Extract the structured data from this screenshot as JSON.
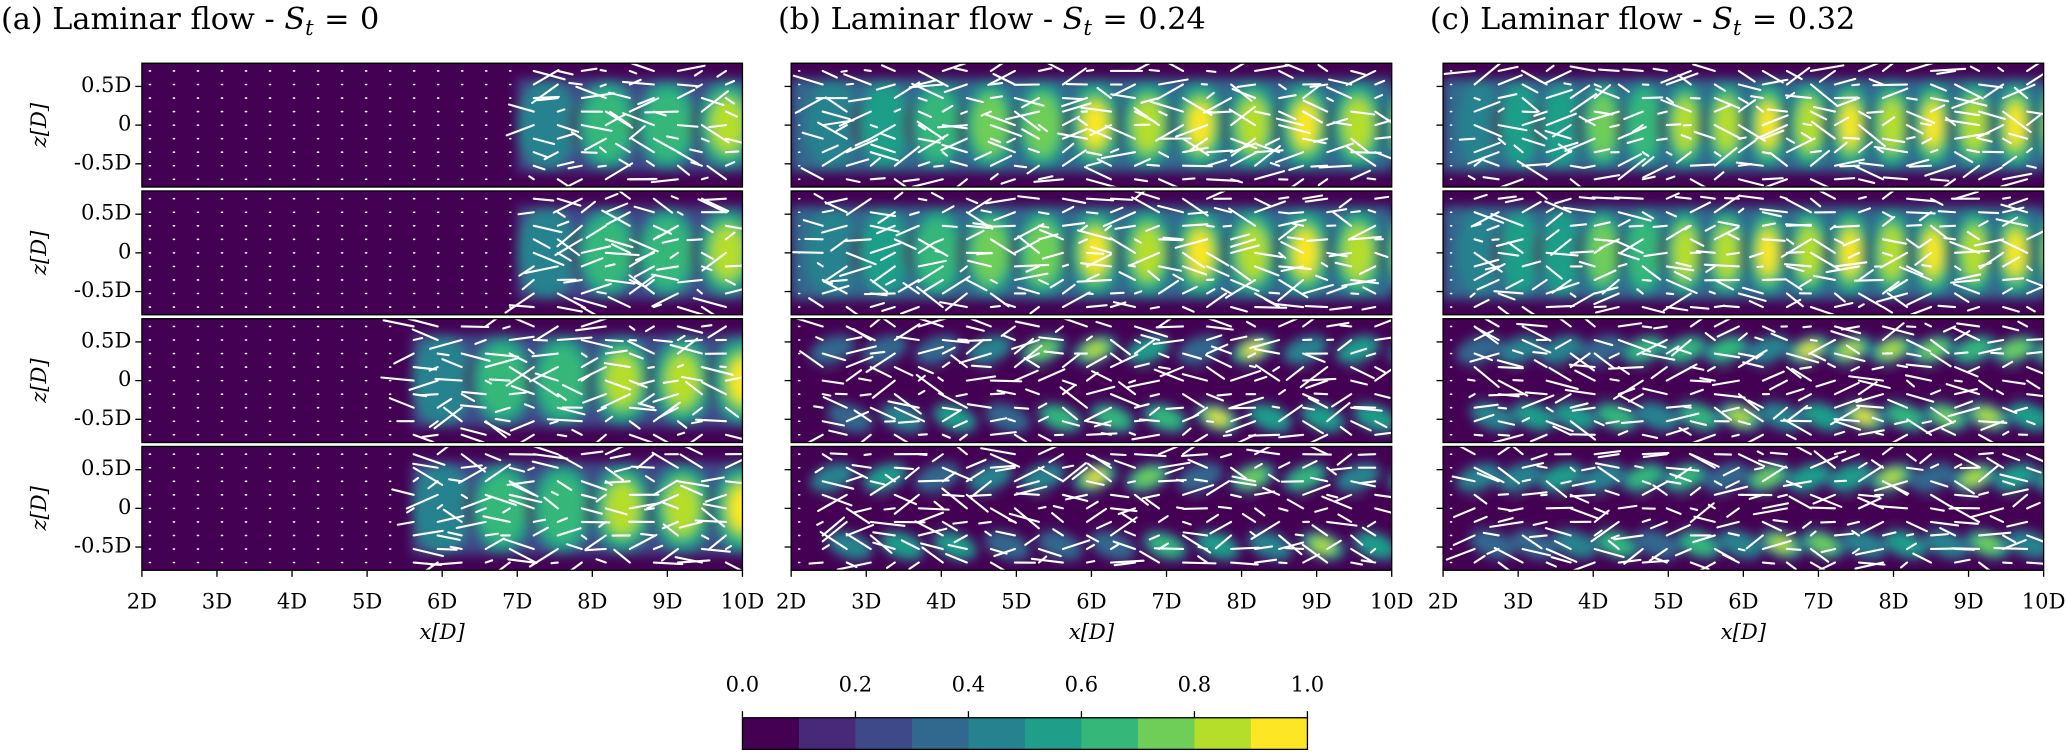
{
  "chart_data": [
    {
      "type": "contour",
      "title": "(a) Laminar flow - ",
      "symbol": "S",
      "subscript": "t",
      "relation": "=",
      "strouhal": 0,
      "xlabel": "x[D]",
      "ylabel": "z[D]",
      "xlim": [
        2,
        10
      ],
      "xticks": [
        {
          "value": 2,
          "label": "2D"
        },
        {
          "value": 3,
          "label": "3D"
        },
        {
          "value": 4,
          "label": "4D"
        },
        {
          "value": 5,
          "label": "5D"
        },
        {
          "value": 6,
          "label": "6D"
        },
        {
          "value": 7,
          "label": "7D"
        },
        {
          "value": 8,
          "label": "8D"
        },
        {
          "value": 9,
          "label": "9D"
        },
        {
          "value": 10,
          "label": "10D"
        }
      ],
      "ylim": [
        -0.8,
        0.8
      ],
      "yticks": [
        {
          "value": -0.5,
          "label": "-0.5D"
        },
        0,
        {
          "value": 0.5,
          "label": "0.5D"
        }
      ]
    },
    {
      "type": "contour",
      "title": "(b) Laminar flow - ",
      "symbol": "S",
      "subscript": "t",
      "relation": "=",
      "strouhal": 0.24,
      "xlabel": "x[D]",
      "xlim": [
        2,
        10
      ],
      "xticks": [
        {
          "value": 2,
          "label": "2D"
        },
        {
          "value": 3,
          "label": "3D"
        },
        {
          "value": 4,
          "label": "4D"
        },
        {
          "value": 5,
          "label": "5D"
        },
        {
          "value": 6,
          "label": "6D"
        },
        {
          "value": 7,
          "label": "7D"
        },
        {
          "value": 8,
          "label": "8D"
        },
        {
          "value": 9,
          "label": "9D"
        },
        {
          "value": 10,
          "label": "10D"
        }
      ],
      "ylim": [
        -0.8,
        0.8
      ],
      "yticks": [
        -0.5,
        0,
        0.5
      ]
    },
    {
      "type": "contour",
      "title": "(c) Laminar flow - ",
      "symbol": "S",
      "subscript": "t",
      "relation": "=",
      "strouhal": 0.32,
      "xlabel": "x[D]",
      "xlim": [
        2,
        10
      ],
      "xticks": [
        {
          "value": 2,
          "label": "2D"
        },
        {
          "value": 3,
          "label": "3D"
        },
        {
          "value": 4,
          "label": "4D"
        },
        {
          "value": 5,
          "label": "5D"
        },
        {
          "value": 6,
          "label": "6D"
        },
        {
          "value": 7,
          "label": "7D"
        },
        {
          "value": 8,
          "label": "8D"
        },
        {
          "value": 9,
          "label": "9D"
        },
        {
          "value": 10,
          "label": "10D"
        }
      ],
      "ylim": [
        -0.8,
        0.8
      ],
      "yticks": [
        -0.5,
        0,
        0.5
      ]
    }
  ],
  "colorbar": {
    "lim": [
      0,
      1
    ],
    "colors": [
      "#440154",
      "#482878",
      "#3e4989",
      "#31688e",
      "#26828e",
      "#1f9e89",
      "#35b779",
      "#6ece58",
      "#b5de2b",
      "#fde725"
    ],
    "ticks": [
      {
        "value": 0,
        "label": "0.0"
      },
      0.2,
      0.4,
      0.6,
      0.8,
      {
        "value": 1,
        "label": "1.0"
      }
    ]
  }
}
